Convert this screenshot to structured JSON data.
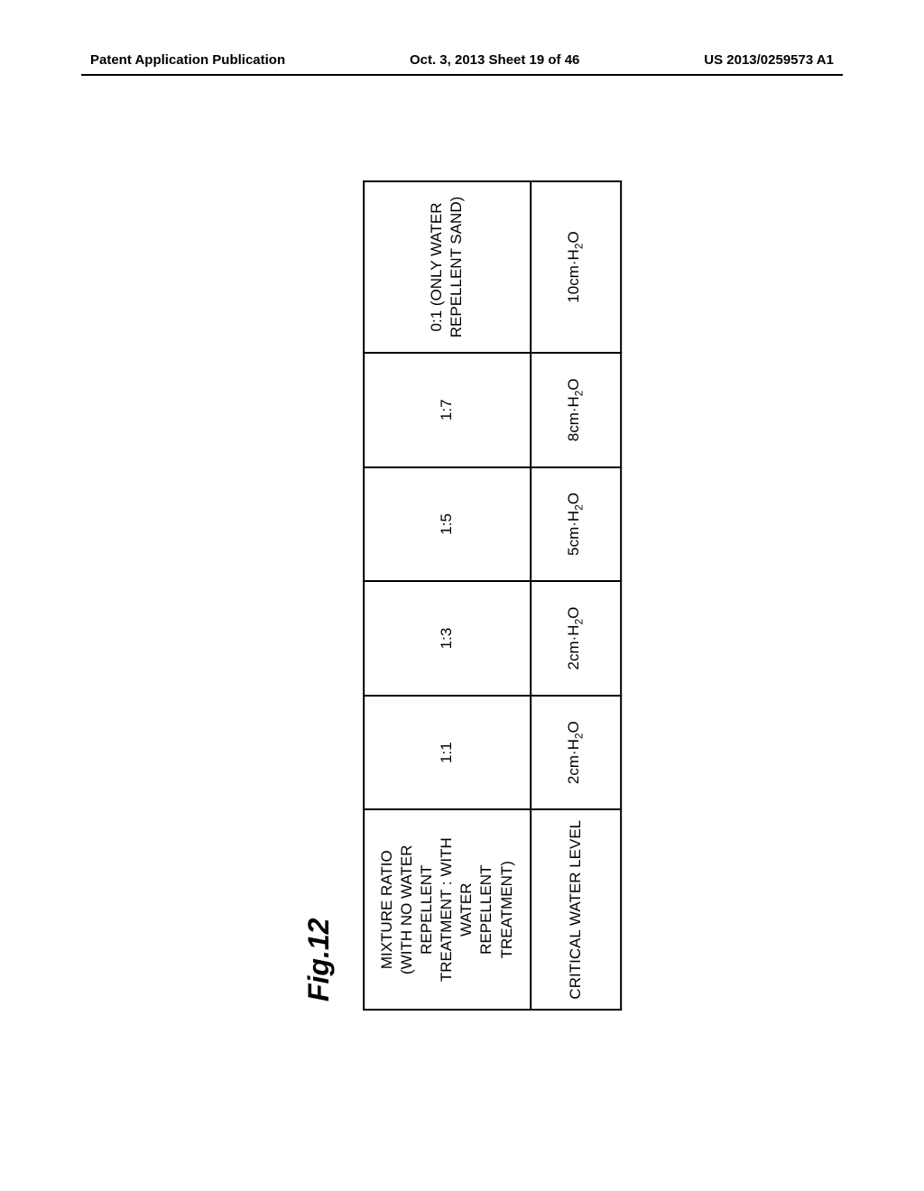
{
  "header": {
    "left": "Patent Application Publication",
    "center": "Oct. 3, 2013  Sheet 19 of 46",
    "right": "US 2013/0259573 A1"
  },
  "figure": {
    "label": "Fig.12",
    "table": {
      "row1_header": "MIXTURE RATIO\n(WITH NO WATER REPELLENT\nTREATMENT : WITH WATER\nREPELLENT TREATMENT)",
      "row1_cells": [
        "1:1",
        "1:3",
        "1:5",
        "1:7"
      ],
      "row1_last": "0:1 (ONLY WATER\nREPELLENT SAND)",
      "row2_header": "CRITICAL WATER LEVEL",
      "row2_cells": [
        "2cm·H₂O",
        "2cm·H₂O",
        "5cm·H₂O",
        "8cm·H₂O",
        "10cm·H₂O"
      ]
    }
  }
}
